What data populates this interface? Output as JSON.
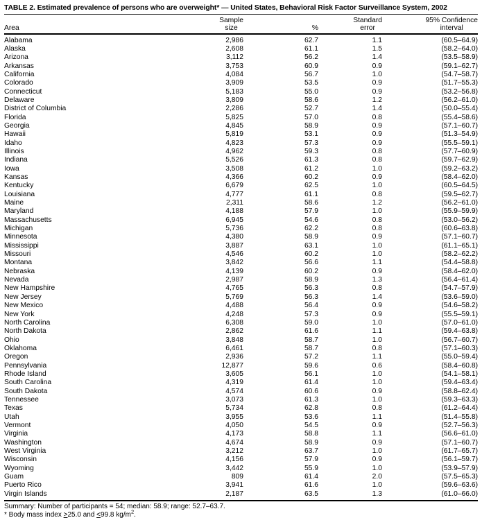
{
  "title": "TABLE 2. Estimated prevalence of persons who are overweight* — United States, Behavioral Risk Factor Surveillance System, 2002",
  "columns": {
    "area": "Area",
    "sample_line1": "Sample",
    "sample_line2": "size",
    "pct": "%",
    "se_line1": "Standard",
    "se_line2": "error",
    "ci_line1": "95% Confidence",
    "ci_line2": "interval"
  },
  "rows": [
    {
      "area": "Alabama",
      "sample": "2,986",
      "pct": "62.7",
      "se": "1.1",
      "ci": "(60.5–64.9)"
    },
    {
      "area": "Alaska",
      "sample": "2,608",
      "pct": "61.1",
      "se": "1.5",
      "ci": "(58.2–64.0)"
    },
    {
      "area": "Arizona",
      "sample": "3,112",
      "pct": "56.2",
      "se": "1.4",
      "ci": "(53.5–58.9)"
    },
    {
      "area": "Arkansas",
      "sample": "3,753",
      "pct": "60.9",
      "se": "0.9",
      "ci": "(59.1–62.7)"
    },
    {
      "area": "California",
      "sample": "4,084",
      "pct": "56.7",
      "se": "1.0",
      "ci": "(54.7–58.7)"
    },
    {
      "area": "Colorado",
      "sample": "3,909",
      "pct": "53.5",
      "se": "0.9",
      "ci": "(51.7–55.3)"
    },
    {
      "area": "Connecticut",
      "sample": "5,183",
      "pct": "55.0",
      "se": "0.9",
      "ci": "(53.2–56.8)"
    },
    {
      "area": "Delaware",
      "sample": "3,809",
      "pct": "58.6",
      "se": "1.2",
      "ci": "(56.2–61.0)"
    },
    {
      "area": "District of Columbia",
      "sample": "2,286",
      "pct": "52.7",
      "se": "1.4",
      "ci": "(50.0–55.4)"
    },
    {
      "area": "Florida",
      "sample": "5,825",
      "pct": "57.0",
      "se": "0.8",
      "ci": "(55.4–58.6)"
    },
    {
      "area": "Georgia",
      "sample": "4,845",
      "pct": "58.9",
      "se": "0.9",
      "ci": "(57.1–60.7)"
    },
    {
      "area": "Hawaii",
      "sample": "5,819",
      "pct": "53.1",
      "se": "0.9",
      "ci": "(51.3–54.9)"
    },
    {
      "area": "Idaho",
      "sample": "4,823",
      "pct": "57.3",
      "se": "0.9",
      "ci": "(55.5–59.1)"
    },
    {
      "area": "Illinois",
      "sample": "4,962",
      "pct": "59.3",
      "se": "0.8",
      "ci": "(57.7–60.9)"
    },
    {
      "area": "Indiana",
      "sample": "5,526",
      "pct": "61.3",
      "se": "0.8",
      "ci": "(59.7–62.9)"
    },
    {
      "area": "Iowa",
      "sample": "3,508",
      "pct": "61.2",
      "se": "1.0",
      "ci": "(59.2–63.2)"
    },
    {
      "area": "Kansas",
      "sample": "4,366",
      "pct": "60.2",
      "se": "0.9",
      "ci": "(58.4–62.0)"
    },
    {
      "area": "Kentucky",
      "sample": "6,679",
      "pct": "62.5",
      "se": "1.0",
      "ci": "(60.5–64.5)"
    },
    {
      "area": "Louisiana",
      "sample": "4,777",
      "pct": "61.1",
      "se": "0.8",
      "ci": "(59.5–62.7)"
    },
    {
      "area": "Maine",
      "sample": "2,311",
      "pct": "58.6",
      "se": "1.2",
      "ci": "(56.2–61.0)"
    },
    {
      "area": "Maryland",
      "sample": "4,188",
      "pct": "57.9",
      "se": "1.0",
      "ci": "(55.9–59.9)"
    },
    {
      "area": "Massachusetts",
      "sample": "6,945",
      "pct": "54.6",
      "se": "0.8",
      "ci": "(53.0–56.2)"
    },
    {
      "area": "Michigan",
      "sample": "5,736",
      "pct": "62.2",
      "se": "0.8",
      "ci": "(60.6–63.8)"
    },
    {
      "area": "Minnesota",
      "sample": "4,380",
      "pct": "58.9",
      "se": "0.9",
      "ci": "(57.1–60.7)"
    },
    {
      "area": "Mississippi",
      "sample": "3,887",
      "pct": "63.1",
      "se": "1.0",
      "ci": "(61.1–65.1)"
    },
    {
      "area": "Missouri",
      "sample": "4,546",
      "pct": "60.2",
      "se": "1.0",
      "ci": "(58.2–62.2)"
    },
    {
      "area": "Montana",
      "sample": "3,842",
      "pct": "56.6",
      "se": "1.1",
      "ci": "(54.4–58.8)"
    },
    {
      "area": "Nebraska",
      "sample": "4,139",
      "pct": "60.2",
      "se": "0.9",
      "ci": "(58.4–62.0)"
    },
    {
      "area": "Nevada",
      "sample": "2,987",
      "pct": "58.9",
      "se": "1.3",
      "ci": "(56.4–61.4)"
    },
    {
      "area": "New Hampshire",
      "sample": "4,765",
      "pct": "56.3",
      "se": "0.8",
      "ci": "(54.7–57.9)"
    },
    {
      "area": "New Jersey",
      "sample": "5,769",
      "pct": "56.3",
      "se": "1.4",
      "ci": "(53.6–59.0)"
    },
    {
      "area": "New Mexico",
      "sample": "4,488",
      "pct": "56.4",
      "se": "0.9",
      "ci": "(54.6–58.2)"
    },
    {
      "area": "New York",
      "sample": "4,248",
      "pct": "57.3",
      "se": "0.9",
      "ci": "(55.5–59.1)"
    },
    {
      "area": "North Carolina",
      "sample": "6,308",
      "pct": "59.0",
      "se": "1.0",
      "ci": "(57.0–61.0)"
    },
    {
      "area": "North Dakota",
      "sample": "2,862",
      "pct": "61.6",
      "se": "1.1",
      "ci": "(59.4–63.8)"
    },
    {
      "area": "Ohio",
      "sample": "3,848",
      "pct": "58.7",
      "se": "1.0",
      "ci": "(56.7–60.7)"
    },
    {
      "area": "Oklahoma",
      "sample": "6,461",
      "pct": "58.7",
      "se": "0.8",
      "ci": "(57.1–60.3)"
    },
    {
      "area": "Oregon",
      "sample": "2,936",
      "pct": "57.2",
      "se": "1.1",
      "ci": "(55.0–59.4)"
    },
    {
      "area": "Pennsylvania",
      "sample": "12,877",
      "pct": "59.6",
      "se": "0.6",
      "ci": "(58.4–60.8)"
    },
    {
      "area": "Rhode Island",
      "sample": "3,605",
      "pct": "56.1",
      "se": "1.0",
      "ci": "(54.1–58.1)"
    },
    {
      "area": "South Carolina",
      "sample": "4,319",
      "pct": "61.4",
      "se": "1.0",
      "ci": "(59.4–63.4)"
    },
    {
      "area": "South Dakota",
      "sample": "4,574",
      "pct": "60.6",
      "se": "0.9",
      "ci": "(58.8–62.4)"
    },
    {
      "area": "Tennessee",
      "sample": "3,073",
      "pct": "61.3",
      "se": "1.0",
      "ci": "(59.3–63.3)"
    },
    {
      "area": "Texas",
      "sample": "5,734",
      "pct": "62.8",
      "se": "0.8",
      "ci": "(61.2–64.4)"
    },
    {
      "area": "Utah",
      "sample": "3,955",
      "pct": "53.6",
      "se": "1.1",
      "ci": "(51.4–55.8)"
    },
    {
      "area": "Vermont",
      "sample": "4,050",
      "pct": "54.5",
      "se": "0.9",
      "ci": "(52.7–56.3)"
    },
    {
      "area": "Virginia",
      "sample": "4,173",
      "pct": "58.8",
      "se": "1.1",
      "ci": "(56.6–61.0)"
    },
    {
      "area": "Washington",
      "sample": "4,674",
      "pct": "58.9",
      "se": "0.9",
      "ci": "(57.1–60.7)"
    },
    {
      "area": "West Virginia",
      "sample": "3,212",
      "pct": "63.7",
      "se": "1.0",
      "ci": "(61.7–65.7)"
    },
    {
      "area": "Wisconsin",
      "sample": "4,156",
      "pct": "57.9",
      "se": "0.9",
      "ci": "(56.1–59.7)"
    },
    {
      "area": "Wyoming",
      "sample": "3,442",
      "pct": "55.9",
      "se": "1.0",
      "ci": "(53.9–57.9)"
    },
    {
      "area": "Guam",
      "sample": "809",
      "pct": "61.4",
      "se": "2.0",
      "ci": "(57.5–65.3)"
    },
    {
      "area": "Puerto Rico",
      "sample": "3,941",
      "pct": "61.6",
      "se": "1.0",
      "ci": "(59.6–63.6)"
    },
    {
      "area": "Virgin Islands",
      "sample": "2,187",
      "pct": "63.5",
      "se": "1.3",
      "ci": "(61.0–66.0)"
    }
  ],
  "summary": "Summary: Number of participants = 54; median: 58.9; range: 52.7–63.7.",
  "footnote": {
    "marker": "* ",
    "before": "Body mass index ",
    "ge": ">",
    "between": "25.0 and ",
    "le": "<",
    "after": "99.8 kg/m",
    "sup": "2",
    "end": "."
  }
}
